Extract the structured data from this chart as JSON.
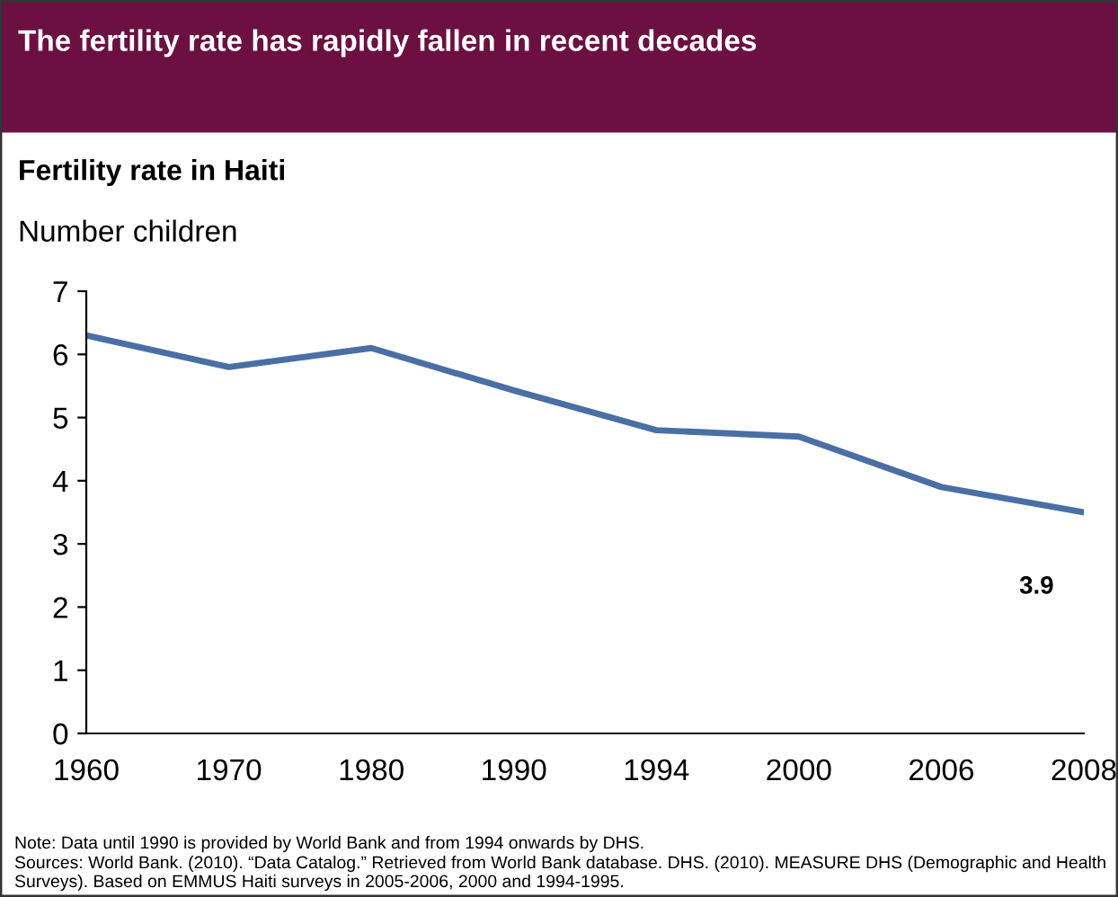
{
  "chart_data": {
    "type": "line",
    "title": "The fertility rate has rapidly fallen in recent decades",
    "subtitle": "Fertility rate in Haiti",
    "ylabel": "Number children",
    "categories": [
      "1960",
      "1970",
      "1980",
      "1990",
      "1994",
      "2000",
      "2006",
      "2008"
    ],
    "series": [
      {
        "color": "#4a6fa5",
        "values": [
          6.3,
          5.8,
          6.1,
          5.43,
          4.8,
          4.7,
          3.9,
          3.5
        ]
      }
    ],
    "ylim": [
      0,
      7
    ],
    "yticks": [
      0,
      1,
      2,
      3,
      4,
      5,
      6,
      7
    ],
    "grid": false,
    "legend": false,
    "marker": "none",
    "line_style": "solid",
    "annotations": [
      {
        "text": "3.9",
        "x": "2008",
        "y": 3.5
      },
      "Note: Data until 1990 is provided by World Bank and from 1994 onwards by DHS.",
      "Sources: World Bank. (2010). “Data Catalog.” Retrieved from World Bank database. DHS. (2010). MEASURE DHS (Demographic and Health Surveys). Based on EMMUS Haiti surveys in 2005-2006, 2000 and 1994-1995."
    ]
  }
}
